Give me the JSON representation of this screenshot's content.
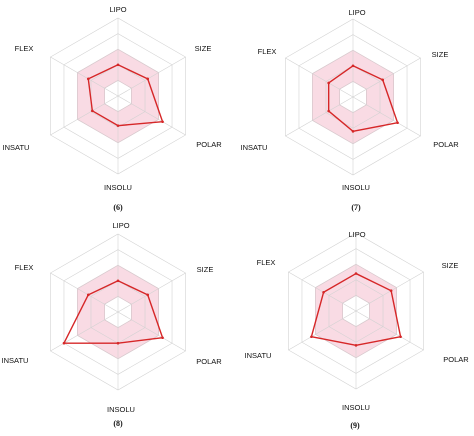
{
  "colors": {
    "band_fill": "#f9dbe4",
    "band_edge": "#f2a9bd",
    "series": "#d62728",
    "grid": "#d2d2d2"
  },
  "chart_data": [
    {
      "type": "radar",
      "label": "(6)",
      "axes": [
        "LIPO",
        "SIZE",
        "POLAR",
        "INSOLU",
        "INSATU",
        "FLEX"
      ],
      "rmax": 5,
      "grid": true,
      "band": {
        "min": 1,
        "max": 3
      },
      "values": [
        2,
        2.2,
        3.3,
        1.9,
        1.9,
        2.2
      ]
    },
    {
      "type": "radar",
      "label": "(7)",
      "axes": [
        "LIPO",
        "SIZE",
        "POLAR",
        "INSOLU",
        "INSATU",
        "FLEX"
      ],
      "rmax": 5,
      "grid": true,
      "band": {
        "min": 1,
        "max": 3
      },
      "values": [
        2,
        2.2,
        3.3,
        2.2,
        1.8,
        1.8
      ]
    },
    {
      "type": "radar",
      "label": "(8)",
      "axes": [
        "LIPO",
        "SIZE",
        "POLAR",
        "INSOLU",
        "INSATU",
        "FLEX"
      ],
      "rmax": 5,
      "grid": true,
      "band": {
        "min": 1,
        "max": 3
      },
      "values": [
        2,
        2.2,
        3.3,
        2,
        4,
        2.2
      ]
    },
    {
      "type": "radar",
      "label": "(9)",
      "axes": [
        "LIPO",
        "SIZE",
        "POLAR",
        "INSOLU",
        "INSATU",
        "FLEX"
      ],
      "rmax": 5,
      "grid": true,
      "band": {
        "min": 1,
        "max": 3
      },
      "values": [
        2.4,
        2.6,
        3.3,
        2.2,
        3.3,
        2.4
      ]
    }
  ]
}
